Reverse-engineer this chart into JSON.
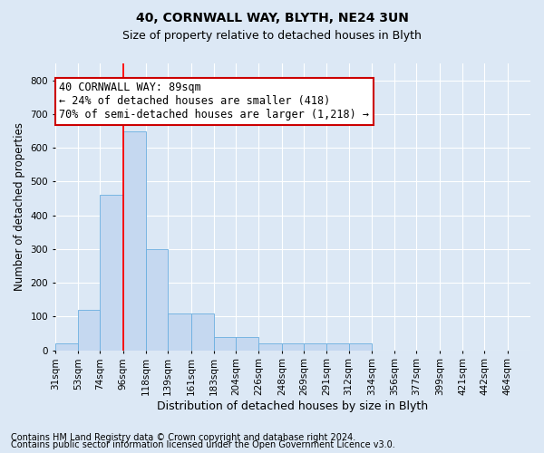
{
  "title1": "40, CORNWALL WAY, BLYTH, NE24 3UN",
  "title2": "Size of property relative to detached houses in Blyth",
  "xlabel": "Distribution of detached houses by size in Blyth",
  "ylabel": "Number of detached properties",
  "categories": [
    "31sqm",
    "53sqm",
    "74sqm",
    "96sqm",
    "118sqm",
    "139sqm",
    "161sqm",
    "183sqm",
    "204sqm",
    "226sqm",
    "248sqm",
    "269sqm",
    "291sqm",
    "312sqm",
    "334sqm",
    "356sqm",
    "377sqm",
    "399sqm",
    "421sqm",
    "442sqm",
    "464sqm"
  ],
  "values": [
    20,
    120,
    460,
    650,
    300,
    110,
    110,
    40,
    40,
    20,
    20,
    20,
    20,
    20,
    0,
    0,
    0,
    0,
    0,
    0,
    0
  ],
  "bar_color": "#c5d8f0",
  "bar_edge_color": "#6aaee0",
  "red_line_x": 96,
  "bin_edges_sqm": [
    31,
    53,
    74,
    96,
    118,
    139,
    161,
    183,
    204,
    226,
    248,
    269,
    291,
    312,
    334,
    356,
    377,
    399,
    421,
    442,
    464,
    486
  ],
  "ylim": [
    0,
    850
  ],
  "yticks": [
    0,
    100,
    200,
    300,
    400,
    500,
    600,
    700,
    800
  ],
  "annotation_text": "40 CORNWALL WAY: 89sqm\n← 24% of detached houses are smaller (418)\n70% of semi-detached houses are larger (1,218) →",
  "annotation_box_color": "#ffffff",
  "annotation_box_edge_color": "#cc0000",
  "footnote1": "Contains HM Land Registry data © Crown copyright and database right 2024.",
  "footnote2": "Contains public sector information licensed under the Open Government Licence v3.0.",
  "background_color": "#dce8f5",
  "plot_bg_color": "#dce8f5",
  "grid_color": "#ffffff",
  "title1_fontsize": 10,
  "title2_fontsize": 9,
  "xlabel_fontsize": 9,
  "ylabel_fontsize": 8.5,
  "tick_fontsize": 7.5,
  "annotation_fontsize": 8.5,
  "footnote_fontsize": 7
}
